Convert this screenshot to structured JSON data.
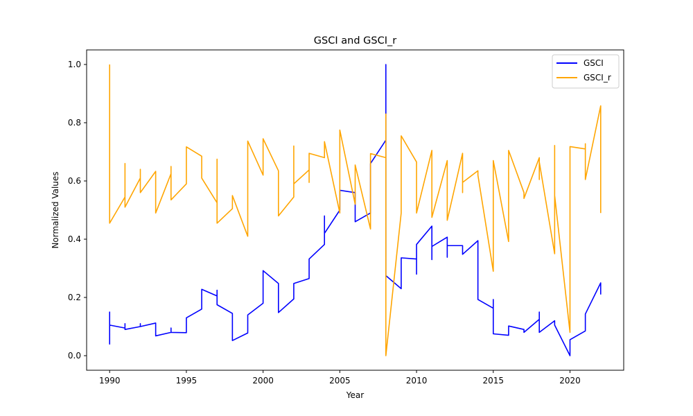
{
  "chart_data": {
    "type": "line",
    "title": "GSCI and GSCI_r",
    "xlabel": "Year",
    "ylabel": "Normalized Values",
    "xlim": [
      1988.5,
      2023.5
    ],
    "ylim": [
      -0.05,
      1.05
    ],
    "xticks": [
      1990,
      1995,
      2000,
      2005,
      2010,
      2015,
      2020
    ],
    "yticks": [
      0.0,
      0.2,
      0.4,
      0.6,
      0.8,
      1.0
    ],
    "ytick_labels": [
      "0.0",
      "0.2",
      "0.4",
      "0.6",
      "0.8",
      "1.0"
    ],
    "grid": false,
    "legend_position": "top-right",
    "series": [
      {
        "name": "GSCI",
        "color": "#0000ff",
        "x": [
          1990,
          1990,
          1990,
          1990,
          1991,
          1991,
          1991,
          1992,
          1992,
          1992,
          1993,
          1993,
          1994,
          1994,
          1994,
          1995,
          1995,
          1996,
          1996,
          1997,
          1997,
          1997,
          1998,
          1998,
          1999,
          1999,
          2000,
          2000,
          2001,
          2001,
          2002,
          2002,
          2003,
          2003,
          2004,
          2004,
          2004,
          2005,
          2005,
          2006,
          2006,
          2007,
          2007,
          2007,
          2008,
          2008,
          2008,
          2008,
          2008,
          2009,
          2009,
          2010,
          2010,
          2010,
          2011,
          2011,
          2011,
          2012,
          2012,
          2012,
          2013,
          2013,
          2014,
          2014,
          2014,
          2015,
          2015,
          2015,
          2016,
          2016,
          2017,
          2017,
          2018,
          2018,
          2018,
          2019,
          2019,
          2020,
          2020,
          2021,
          2021,
          2022,
          2022
        ],
        "y": [
          0.04,
          0.15,
          0.04,
          0.105,
          0.095,
          0.11,
          0.09,
          0.1,
          0.11,
          0.1,
          0.112,
          0.068,
          0.08,
          0.095,
          0.08,
          0.079,
          0.13,
          0.16,
          0.228,
          0.205,
          0.225,
          0.175,
          0.145,
          0.052,
          0.078,
          0.14,
          0.18,
          0.292,
          0.248,
          0.148,
          0.195,
          0.248,
          0.265,
          0.332,
          0.382,
          0.48,
          0.42,
          0.5,
          0.568,
          0.56,
          0.46,
          0.49,
          0.6,
          0.66,
          0.74,
          1.0,
          0.8,
          0.278,
          0.275,
          0.23,
          0.336,
          0.332,
          0.28,
          0.382,
          0.445,
          0.33,
          0.375,
          0.407,
          0.338,
          0.378,
          0.378,
          0.348,
          0.395,
          0.38,
          0.193,
          0.163,
          0.193,
          0.075,
          0.07,
          0.102,
          0.09,
          0.08,
          0.125,
          0.15,
          0.08,
          0.12,
          0.105,
          0.0,
          0.055,
          0.085,
          0.143,
          0.25,
          0.21
        ]
      },
      {
        "name": "GSCI_r",
        "color": "#ffa500",
        "x": [
          1990,
          1990,
          1991,
          1991,
          1991,
          1992,
          1992,
          1992,
          1993,
          1993,
          1994,
          1994,
          1994,
          1995,
          1995,
          1996,
          1996,
          1997,
          1997,
          1997,
          1998,
          1998,
          1999,
          1999,
          1999,
          2000,
          2000,
          2000,
          2001,
          2001,
          2002,
          2002,
          2002,
          2003,
          2003,
          2003,
          2004,
          2004,
          2005,
          2005,
          2006,
          2006,
          2006,
          2007,
          2007,
          2008,
          2008,
          2008,
          2009,
          2009,
          2010,
          2010,
          2010,
          2011,
          2011,
          2011,
          2012,
          2012,
          2012,
          2013,
          2013,
          2013,
          2014,
          2014,
          2015,
          2015,
          2015,
          2016,
          2016,
          2016,
          2017,
          2017,
          2018,
          2018,
          2018,
          2019,
          2019,
          2019,
          2020,
          2020,
          2021,
          2021,
          2021,
          2022,
          2022
        ],
        "y": [
          1.0,
          0.455,
          0.545,
          0.66,
          0.51,
          0.61,
          0.64,
          0.56,
          0.633,
          0.49,
          0.625,
          0.65,
          0.535,
          0.59,
          0.717,
          0.685,
          0.61,
          0.525,
          0.675,
          0.455,
          0.505,
          0.55,
          0.41,
          0.69,
          0.737,
          0.62,
          0.7,
          0.745,
          0.635,
          0.48,
          0.545,
          0.72,
          0.59,
          0.638,
          0.595,
          0.695,
          0.68,
          0.735,
          0.49,
          0.775,
          0.52,
          0.56,
          0.655,
          0.435,
          0.694,
          0.68,
          0.83,
          0.0,
          0.49,
          0.755,
          0.665,
          0.58,
          0.49,
          0.705,
          0.69,
          0.475,
          0.67,
          0.64,
          0.465,
          0.695,
          0.56,
          0.595,
          0.635,
          0.62,
          0.29,
          0.51,
          0.67,
          0.392,
          0.64,
          0.705,
          0.56,
          0.54,
          0.68,
          0.605,
          0.665,
          0.35,
          0.722,
          0.55,
          0.08,
          0.718,
          0.71,
          0.728,
          0.605,
          0.858,
          0.49
        ]
      }
    ]
  }
}
